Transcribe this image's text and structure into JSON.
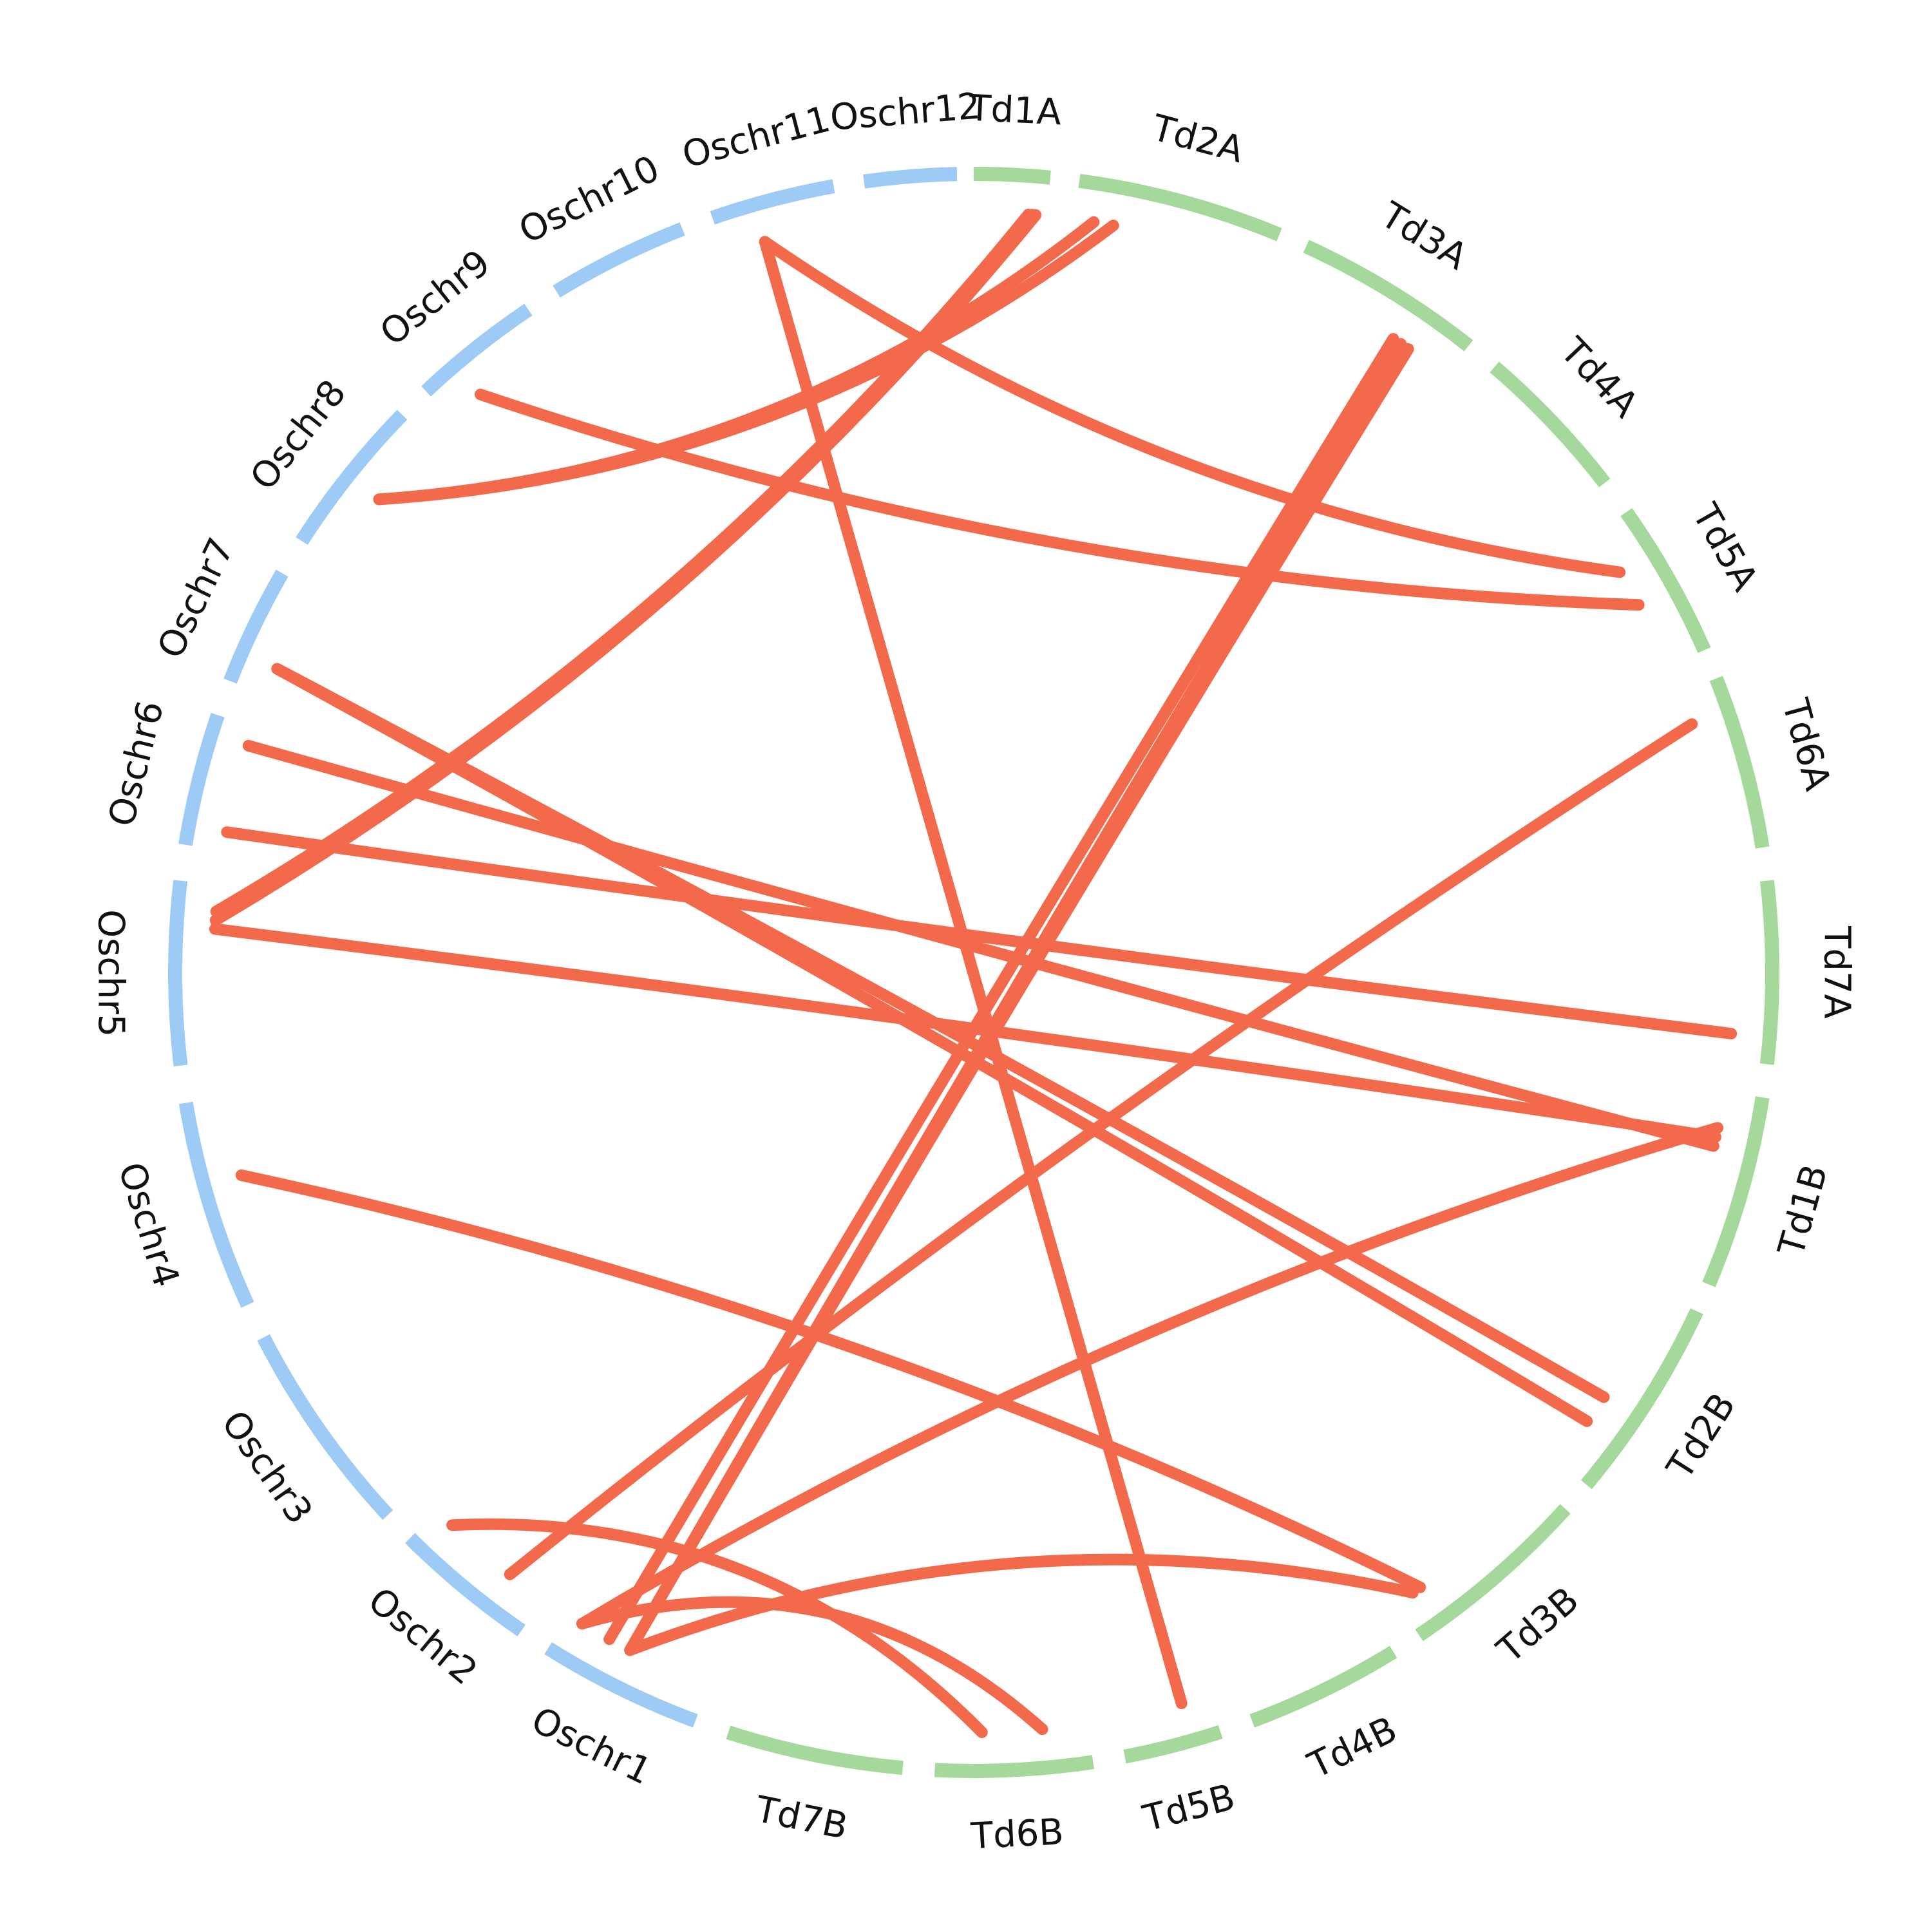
{
  "colors": {
    "rice_band": "#9ecbf5",
    "wheat_band": "#a5d99c",
    "link": "#f26a4b",
    "label": "#111111"
  },
  "chart_data": {
    "type": "chord",
    "chromosomes": [
      {
        "id": "Td1A",
        "label": "Td1A",
        "group": "wheat"
      },
      {
        "id": "Td2A",
        "label": "Td2A",
        "group": "wheat"
      },
      {
        "id": "Td3A",
        "label": "Td3A",
        "group": "wheat"
      },
      {
        "id": "Td4A",
        "label": "Td4A",
        "group": "wheat"
      },
      {
        "id": "Td5A",
        "label": "Td5A",
        "group": "wheat"
      },
      {
        "id": "Td6A",
        "label": "Td6A",
        "group": "wheat"
      },
      {
        "id": "Td7A",
        "label": "Td7A",
        "group": "wheat"
      },
      {
        "id": "Td1B",
        "label": "Td1B",
        "group": "wheat"
      },
      {
        "id": "Td2B",
        "label": "Td2B",
        "group": "wheat"
      },
      {
        "id": "Td3B",
        "label": "Td3B",
        "group": "wheat"
      },
      {
        "id": "Td4B",
        "label": "Td4B",
        "group": "wheat"
      },
      {
        "id": "Td5B",
        "label": "Td5B",
        "group": "wheat"
      },
      {
        "id": "Td6B",
        "label": "Td6B",
        "group": "wheat"
      },
      {
        "id": "Td7B",
        "label": "Td7B",
        "group": "wheat"
      },
      {
        "id": "Oschr1",
        "label": "Oschr1",
        "group": "rice"
      },
      {
        "id": "Oschr2",
        "label": "Oschr2",
        "group": "rice"
      },
      {
        "id": "Oschr3",
        "label": "Oschr3",
        "group": "rice"
      },
      {
        "id": "Oschr4",
        "label": "Oschr4",
        "group": "rice"
      },
      {
        "id": "Oschr5",
        "label": "Oschr5",
        "group": "rice"
      },
      {
        "id": "Oschr6",
        "label": "Oschr6",
        "group": "rice"
      },
      {
        "id": "Oschr7",
        "label": "Oschr7",
        "group": "rice"
      },
      {
        "id": "Oschr8",
        "label": "Oschr8",
        "group": "rice"
      },
      {
        "id": "Oschr9",
        "label": "Oschr9",
        "group": "rice"
      },
      {
        "id": "Oschr10",
        "label": "Oschr10",
        "group": "rice"
      },
      {
        "id": "Oschr11",
        "label": "Oschr11",
        "group": "rice"
      },
      {
        "id": "Oschr12",
        "label": "Oschr12",
        "group": "rice"
      }
    ],
    "links": [
      {
        "from": "Oschr11",
        "from_pos": 0.35,
        "to": "Td5A",
        "to_pos": 0.3
      },
      {
        "from": "Oschr11",
        "from_pos": 0.35,
        "to": "Td5B",
        "to_pos": 0.3
      },
      {
        "from": "Oschr9",
        "from_pos": 0.3,
        "to": "Td5A",
        "to_pos": 0.55
      },
      {
        "from": "Oschr8",
        "from_pos": 0.5,
        "to": "Td2A",
        "to_pos": 0.1
      },
      {
        "from": "Oschr8",
        "from_pos": 0.5,
        "to": "Td2A",
        "to_pos": 0.2
      },
      {
        "from": "Oschr7",
        "from_pos": 0.25,
        "to": "Td2B",
        "to_pos": 0.6
      },
      {
        "from": "Oschr7",
        "from_pos": 0.25,
        "to": "Td2B",
        "to_pos": 0.75
      },
      {
        "from": "Oschr6",
        "from_pos": 0.85,
        "to": "Td1B",
        "to_pos": 0.3
      },
      {
        "from": "Oschr6",
        "from_pos": 0.15,
        "to": "Td7A",
        "to_pos": 0.85
      },
      {
        "from": "Oschr5",
        "from_pos": 0.85,
        "to": "Td1A",
        "to_pos": 0.75
      },
      {
        "from": "Oschr5",
        "from_pos": 0.85,
        "to": "Td1A",
        "to_pos": 0.8
      },
      {
        "from": "Oschr5",
        "from_pos": 0.8,
        "to": "Td1A",
        "to_pos": 0.85
      },
      {
        "from": "Oschr5",
        "from_pos": 0.75,
        "to": "Td1B",
        "to_pos": 0.25
      },
      {
        "from": "Oschr4",
        "from_pos": 0.6,
        "to": "Td3B",
        "to_pos": 0.85
      },
      {
        "from": "Oschr2",
        "from_pos": 0.85,
        "to": "Td6B",
        "to_pos": 0.7
      },
      {
        "from": "Oschr2",
        "from_pos": 0.3,
        "to": "Td6A",
        "to_pos": 0.2
      },
      {
        "from": "Oschr1",
        "from_pos": 0.9,
        "to": "Td1B",
        "to_pos": 0.2
      },
      {
        "from": "Oschr1",
        "from_pos": 0.9,
        "to": "Td6B",
        "to_pos": 0.3
      },
      {
        "from": "Oschr1",
        "from_pos": 0.7,
        "to": "Td3A",
        "to_pos": 0.65
      },
      {
        "from": "Oschr1",
        "from_pos": 0.55,
        "to": "Td3A",
        "to_pos": 0.7
      },
      {
        "from": "Oschr1",
        "from_pos": 0.55,
        "to": "Td3A",
        "to_pos": 0.75
      },
      {
        "from": "Oschr1",
        "from_pos": 0.55,
        "to": "Td3B",
        "to_pos": 0.9
      }
    ]
  }
}
